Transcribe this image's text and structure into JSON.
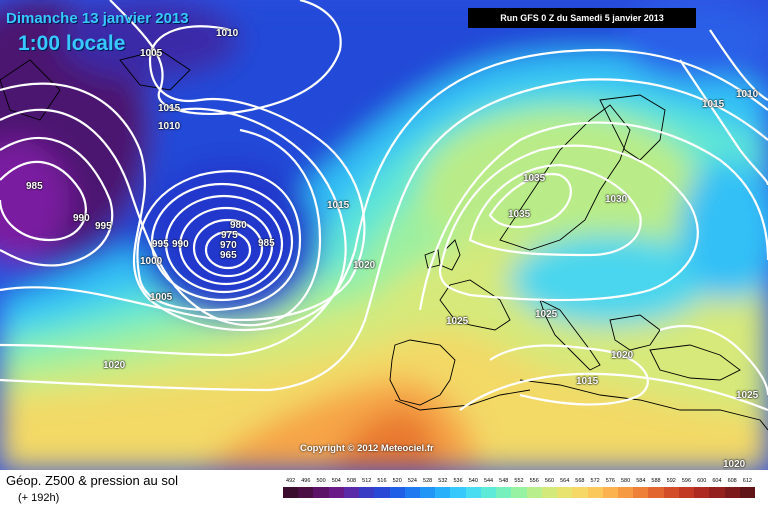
{
  "header": {
    "date_title": "Dimanche 13 janvier 2013",
    "time_title": "1:00 locale",
    "run_info": "Run GFS 0 Z du Samedi 5 janvier 2013"
  },
  "map": {
    "copyright": "Copyright © 2012 Meteociel.fr",
    "isobar_labels": [
      "1010",
      "1005",
      "1015",
      "1010",
      "985",
      "990",
      "995",
      "995",
      "990",
      "980",
      "975",
      "970",
      "965",
      "985",
      "1000",
      "1005",
      "1015",
      "1020",
      "1020",
      "1035",
      "1030",
      "1035",
      "1025",
      "1025",
      "1020",
      "1015",
      "1010",
      "1015",
      "1025",
      "1020"
    ]
  },
  "legend": {
    "title": "Géop. Z500 & pression au sol",
    "subtitle": "(+ 192h)",
    "scale_values": [
      "492",
      "496",
      "500",
      "504",
      "508",
      "512",
      "516",
      "520",
      "524",
      "528",
      "532",
      "536",
      "540",
      "544",
      "548",
      "552",
      "556",
      "560",
      "564",
      "568",
      "572",
      "576",
      "580",
      "584",
      "588",
      "592",
      "596",
      "600",
      "604",
      "608",
      "612"
    ],
    "scale_colors": [
      "#3a0c2e",
      "#4b0f45",
      "#5c1266",
      "#6a1a87",
      "#5a2aa8",
      "#3a3bc4",
      "#2a48d6",
      "#1f5fe8",
      "#1f7af2",
      "#2196f7",
      "#28b0fa",
      "#37c8fc",
      "#4adcf0",
      "#5eead8",
      "#76f1bd",
      "#98f2a3",
      "#b8ee8c",
      "#d3e97a",
      "#e8e36e",
      "#f5d866",
      "#fbc85c",
      "#fbb24f",
      "#f69a43",
      "#ee8038",
      "#e2662f",
      "#d34d28",
      "#c23a24",
      "#ad2b21",
      "#95211e",
      "#7c1a1b",
      "#611417"
    ]
  }
}
